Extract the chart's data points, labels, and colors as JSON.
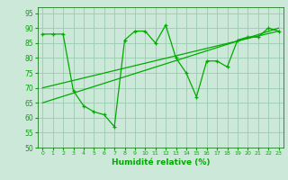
{
  "xlabel": "Humidité relative (%)",
  "xlim": [
    -0.5,
    23.5
  ],
  "ylim": [
    50,
    97
  ],
  "yticks": [
    50,
    55,
    60,
    65,
    70,
    75,
    80,
    85,
    90,
    95
  ],
  "xticks": [
    0,
    1,
    2,
    3,
    4,
    5,
    6,
    7,
    8,
    9,
    10,
    11,
    12,
    13,
    14,
    15,
    16,
    17,
    18,
    19,
    20,
    21,
    22,
    23
  ],
  "background_color": "#cce8d8",
  "grid_color": "#99ccb0",
  "line_color": "#00aa00",
  "line1_x": [
    0,
    1,
    2,
    3,
    4,
    5,
    6,
    7,
    8,
    9,
    10,
    11,
    12,
    13,
    14,
    15,
    16,
    17,
    18,
    19,
    20,
    21,
    22,
    23
  ],
  "line1_y": [
    88,
    88,
    88,
    69,
    64,
    62,
    61,
    57,
    86,
    89,
    89,
    85,
    91,
    80,
    75,
    67,
    79,
    79,
    77,
    86,
    87,
    87,
    90,
    89
  ],
  "line2_x": [
    0,
    23
  ],
  "line2_y": [
    65,
    90
  ],
  "line3_x": [
    0,
    23
  ],
  "line3_y": [
    70,
    89
  ]
}
